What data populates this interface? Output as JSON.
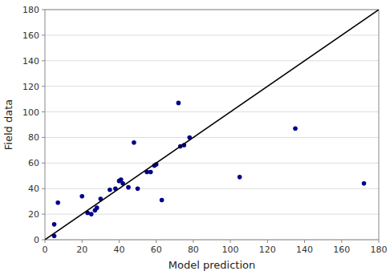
{
  "chart_data": {
    "type": "scatter",
    "xlabel": "Model prediction",
    "ylabel": "Field data",
    "series": [
      {
        "type": "scatter",
        "color": "#00008B",
        "marker": "circle",
        "x": [
          5,
          5,
          7,
          20,
          23,
          25,
          27,
          28,
          30,
          35,
          38,
          40,
          41,
          42,
          45,
          48,
          50,
          55,
          57,
          59,
          60,
          63,
          72,
          73,
          75,
          78,
          105,
          135,
          172
        ],
        "values": [
          3,
          12,
          29,
          34,
          21,
          20,
          23,
          25,
          32,
          39,
          40,
          46,
          47,
          44,
          41,
          76,
          40,
          53,
          53,
          58,
          59,
          31,
          107,
          73,
          74,
          80,
          49,
          87,
          44
        ]
      },
      {
        "type": "line",
        "color": "#000000",
        "line_style": "solid",
        "x": [
          0,
          180
        ],
        "values": [
          0,
          180
        ]
      }
    ],
    "xlim": [
      0,
      180
    ],
    "ylim": [
      0,
      180
    ],
    "xticks": [
      0,
      20,
      40,
      60,
      80,
      100,
      120,
      140,
      160,
      180
    ],
    "yticks": [
      0,
      20,
      40,
      60,
      80,
      100,
      120,
      140,
      160,
      180
    ],
    "grid": "y"
  }
}
